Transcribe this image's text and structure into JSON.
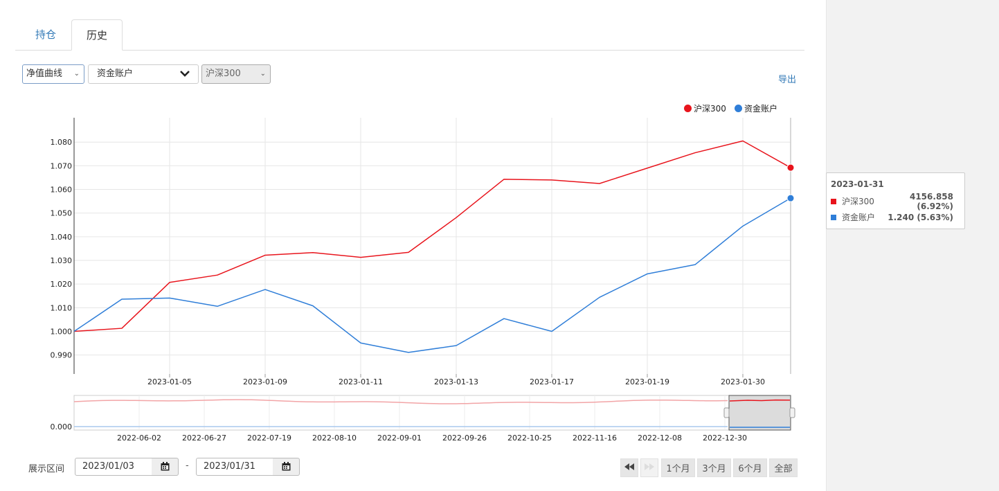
{
  "tabs": [
    {
      "label": "持仓"
    },
    {
      "label": "历史"
    }
  ],
  "controls": {
    "curve_select": "净值曲线",
    "account_select": "资金账户",
    "benchmark_select": "沪深300",
    "export_label": "导出"
  },
  "legend": [
    {
      "name": "沪深300",
      "color": "#e8141c"
    },
    {
      "name": "资金账户",
      "color": "#2f7ed8"
    }
  ],
  "chart_data": {
    "type": "line",
    "x": [
      "2023-01-03",
      "2023-01-04",
      "2023-01-05",
      "2023-01-06",
      "2023-01-09",
      "2023-01-10",
      "2023-01-11",
      "2023-01-12",
      "2023-01-13",
      "2023-01-16",
      "2023-01-17",
      "2023-01-18",
      "2023-01-19",
      "2023-01-20",
      "2023-01-30",
      "2023-01-31"
    ],
    "x_tick_labels": [
      "2023-01-05",
      "2023-01-09",
      "2023-01-11",
      "2023-01-13",
      "2023-01-17",
      "2023-01-19",
      "2023-01-30"
    ],
    "y_tick_labels": [
      "0.990",
      "1.000",
      "1.010",
      "1.020",
      "1.030",
      "1.040",
      "1.050",
      "1.060",
      "1.070",
      "1.080"
    ],
    "ylim": [
      0.982,
      1.0903
    ],
    "grid": true,
    "legend_position": "top-right",
    "series": [
      {
        "name": "沪深300",
        "color": "#e8141c",
        "values": [
          1.0,
          1.0013,
          1.0207,
          1.0238,
          1.0322,
          1.0333,
          1.0313,
          1.0334,
          1.0481,
          1.0643,
          1.064,
          1.0625,
          1.069,
          1.0755,
          1.0805,
          1.0692
        ]
      },
      {
        "name": "资金账户",
        "color": "#2f7ed8",
        "values": [
          1.0,
          1.0136,
          1.0141,
          1.0106,
          1.0177,
          1.0108,
          0.9951,
          0.9911,
          0.994,
          1.0054,
          1.0,
          1.0144,
          1.0243,
          1.0282,
          1.0445,
          1.0563
        ]
      }
    ]
  },
  "navigator": {
    "y_label": "0.000",
    "x_tick_labels": [
      "2022-06-02",
      "2022-06-27",
      "2022-07-19",
      "2022-08-10",
      "2022-09-01",
      "2022-09-26",
      "2022-10-25",
      "2022-11-16",
      "2022-12-08",
      "2022-12-30"
    ]
  },
  "tooltip": {
    "date": "2023-01-31",
    "rows": [
      {
        "name": "沪深300",
        "value": "4156.858 (6.92%)",
        "color": "#e8141c"
      },
      {
        "name": "资金账户",
        "value": "1.240 (5.63%)",
        "color": "#2f7ed8"
      }
    ]
  },
  "range": {
    "label": "展示区间",
    "start": "2023/01/03",
    "end": "2023/01/31",
    "separator": "-"
  },
  "period_buttons": [
    "1个月",
    "3个月",
    "6个月",
    "全部"
  ]
}
